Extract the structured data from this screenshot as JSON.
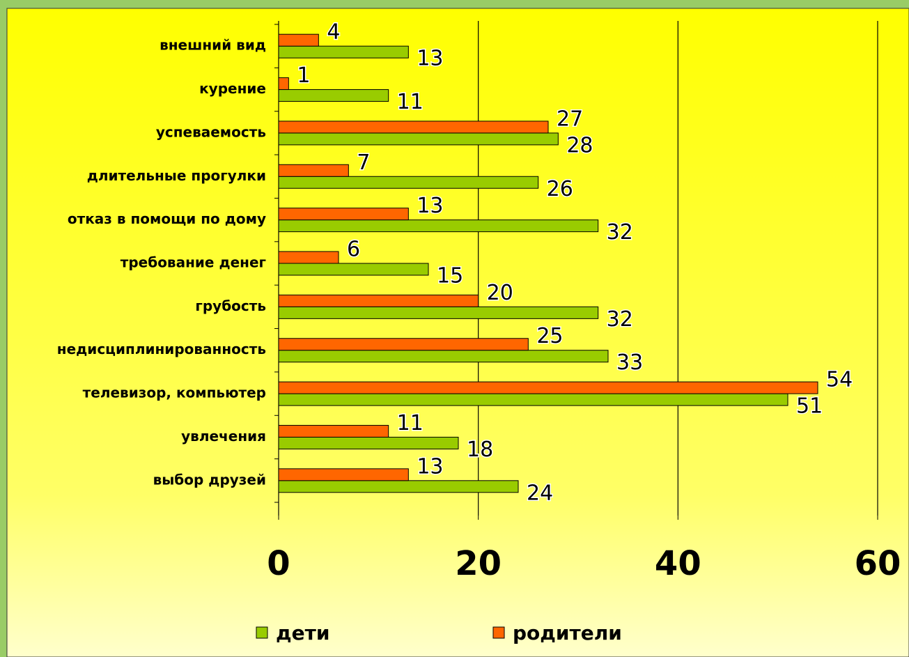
{
  "chart_data": {
    "type": "bar",
    "orientation": "horizontal",
    "categories": [
      "внешний вид",
      "курение",
      "успеваемость",
      "длительные прогулки",
      "отказ в помощи по дому",
      "требование денег",
      "грубость",
      "недисциплинированность",
      "телевизор, компьютер",
      "увлечения",
      "выбор друзей"
    ],
    "series": [
      {
        "name": "дети",
        "color": "#99cc00",
        "values": [
          13,
          11,
          28,
          26,
          32,
          15,
          32,
          33,
          51,
          18,
          24
        ]
      },
      {
        "name": "родители",
        "color": "#ff6600",
        "values": [
          4,
          1,
          27,
          7,
          13,
          6,
          20,
          25,
          54,
          11,
          13
        ]
      }
    ],
    "xlim": [
      0,
      60
    ],
    "xticks": [
      0,
      20,
      40,
      60
    ],
    "grid": true,
    "legend": "bottom"
  }
}
